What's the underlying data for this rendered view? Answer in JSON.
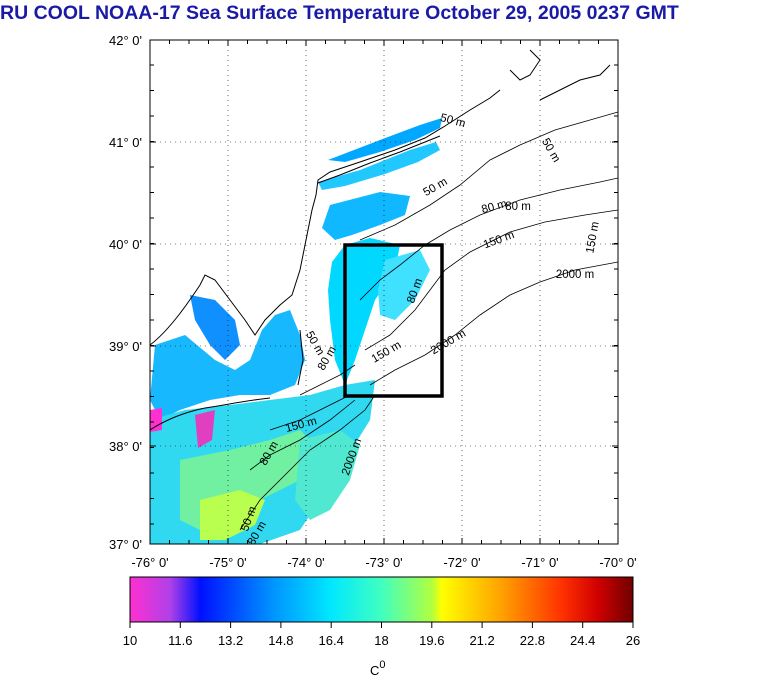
{
  "title": "RU COOL  NOAA-17 Sea Surface Temperature October 29, 2005 0237 GMT",
  "map": {
    "lat_ticks": [
      "42° 0'",
      "41° 0'",
      "40° 0'",
      "39° 0'",
      "38° 0'",
      "37° 0'"
    ],
    "lon_ticks": [
      "-76° 0'",
      "-75° 0'",
      "-74° 0'",
      "-73° 0'",
      "-72° 0'",
      "-71° 0'",
      "-70° 0'"
    ],
    "isobath_labels": [
      {
        "text": "50 m"
      },
      {
        "text": "50 m"
      },
      {
        "text": "50 m"
      },
      {
        "text": "80 m"
      },
      {
        "text": "80 m"
      },
      {
        "text": "150 m"
      },
      {
        "text": "150 m"
      },
      {
        "text": "2000 m"
      },
      {
        "text": "80 m"
      },
      {
        "text": "150 m"
      },
      {
        "text": "2000 m"
      },
      {
        "text": "50 m"
      },
      {
        "text": "80 m"
      },
      {
        "text": "150 m"
      },
      {
        "text": "80 m"
      },
      {
        "text": "2000 m"
      },
      {
        "text": "50 m"
      },
      {
        "text": "80 m"
      }
    ]
  },
  "colorbar": {
    "ticks": [
      "10",
      "11.6",
      "13.2",
      "14.8",
      "16.4",
      "18",
      "19.6",
      "21.2",
      "22.8",
      "24.4",
      "26"
    ],
    "unit": "C",
    "unit_sup": "0",
    "colors": [
      "#ff30d0",
      "#b040e8",
      "#0010ff",
      "#0090ff",
      "#00e8ff",
      "#40ffc0",
      "#b0ff40",
      "#ffff00",
      "#ffa000",
      "#ff3000",
      "#d00000",
      "#700000"
    ]
  }
}
